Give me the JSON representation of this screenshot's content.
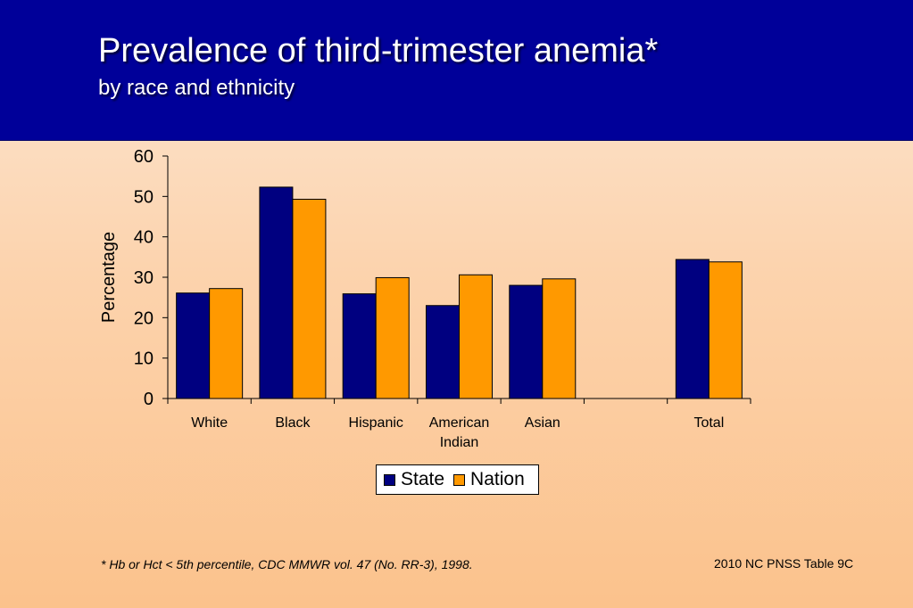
{
  "slide": {
    "title": "Prevalence of third-trimester anemia*",
    "subtitle": "by race and ethnicity",
    "footnote": "*  Hb or Hct < 5th percentile, CDC MMWR vol. 47 (No. RR-3), 1998.",
    "source": "2010 NC PNSS Table 9C"
  },
  "colors": {
    "header_bg": "#000099",
    "state": "#000080",
    "nation": "#FF9900"
  },
  "chart_data": {
    "type": "bar",
    "categories": [
      "White",
      "Black",
      "Hispanic",
      "American Indian",
      "Asian",
      "",
      "Total"
    ],
    "series": [
      {
        "name": "State",
        "values": [
          26.1,
          52.3,
          25.9,
          23.0,
          28.0,
          null,
          34.4
        ]
      },
      {
        "name": "Nation",
        "values": [
          27.2,
          49.3,
          29.9,
          30.6,
          29.6,
          null,
          33.8
        ]
      }
    ],
    "ylabel": "Percentage",
    "xlabel": "",
    "ylim": [
      0,
      60
    ],
    "yticks": [
      0,
      10,
      20,
      30,
      40,
      50,
      60
    ],
    "grid": false,
    "legend_position": "bottom"
  }
}
